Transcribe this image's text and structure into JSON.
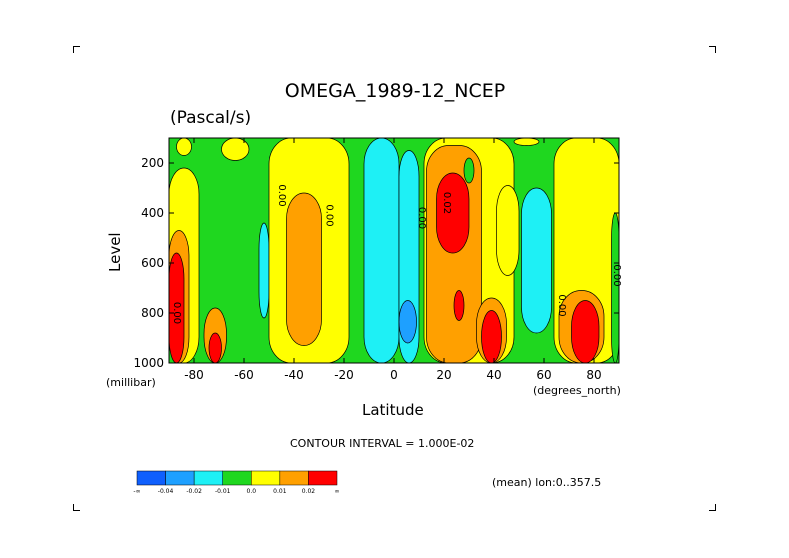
{
  "chart_data": {
    "type": "heatmap",
    "title": "OMEGA_1989-12_NCEP",
    "units": "(Pascal/s)",
    "ylabel": "Level",
    "ylabel_units": "(millibar)",
    "xlabel": "Latitude",
    "xlabel_units": "(degrees_north)",
    "xlim": [
      -90,
      90
    ],
    "ylim": [
      1000,
      100
    ],
    "x_ticks": [
      -80,
      -60,
      -40,
      -20,
      0,
      20,
      40,
      60,
      80
    ],
    "x_tick_labels": [
      "-80",
      "-60",
      "-40",
      "-20",
      "0",
      "20",
      "40",
      "60",
      "80"
    ],
    "y_ticks": [
      200,
      400,
      600,
      800,
      1000
    ],
    "y_tick_labels": [
      "200",
      "400",
      "600",
      "800",
      "1000"
    ],
    "contour_interval_text": "CONTOUR INTERVAL = 1.000E-02",
    "mean_text": "(mean) lon:0..357.5",
    "contour_labels": [
      {
        "text": "0.00",
        "lat": -88,
        "lev": 800
      },
      {
        "text": "0.00",
        "lat": -46,
        "lev": 330
      },
      {
        "text": "0.00",
        "lat": -27,
        "lev": 410
      },
      {
        "text": "0.00",
        "lat": 10,
        "lev": 420
      },
      {
        "text": "0.02",
        "lat": 20,
        "lev": 360
      },
      {
        "text": "0.00",
        "lat": 66,
        "lev": 770
      },
      {
        "text": "0.00",
        "lat": 88,
        "lev": 650
      }
    ],
    "levels": [
      {
        "label": "-0.04",
        "color": "#0f5ffd",
        "min": -0.05,
        "max": -0.04
      },
      {
        "label": "-0.02",
        "color": "#1ea0ff",
        "min": -0.04,
        "max": -0.02
      },
      {
        "label": "-0.01",
        "color": "#1ef0f5",
        "min": -0.02,
        "max": -0.01
      },
      {
        "label": "0.0",
        "color": "#1fd71f",
        "min": -0.01,
        "max": 0.0
      },
      {
        "label": "0.01",
        "color": "#ffff00",
        "min": 0.0,
        "max": 0.01
      },
      {
        "label": "0.02",
        "color": "#ffa000",
        "min": 0.01,
        "max": 0.02
      },
      {
        "label": "",
        "color": "#ff0000",
        "min": 0.02,
        "max": 0.05
      }
    ],
    "colorbar_labels": [
      "-∞",
      "-0.04",
      "-0.02",
      "-0.01",
      "0.0",
      "0.01",
      "0.02",
      "∞"
    ],
    "regions": [
      {
        "color": "#ffff00",
        "lat": [
          -90,
          -78
        ],
        "lev": [
          220,
          1000
        ]
      },
      {
        "color": "#ffa000",
        "lat": [
          -90,
          -82
        ],
        "lev": [
          470,
          1000
        ]
      },
      {
        "color": "#ff0000",
        "lat": [
          -90,
          -84
        ],
        "lev": [
          560,
          1000
        ]
      },
      {
        "color": "#ffa000",
        "lat": [
          -76,
          -67
        ],
        "lev": [
          780,
          1000
        ]
      },
      {
        "color": "#ff0000",
        "lat": [
          -74,
          -69
        ],
        "lev": [
          880,
          1000
        ]
      },
      {
        "color": "#ffff00",
        "lat": [
          -87,
          -81
        ],
        "lev": [
          100,
          170
        ]
      },
      {
        "color": "#ffff00",
        "lat": [
          -69,
          -58
        ],
        "lev": [
          100,
          190
        ]
      },
      {
        "color": "#1ef0f5",
        "lat": [
          -54,
          -50
        ],
        "lev": [
          440,
          820
        ]
      },
      {
        "color": "#ffff00",
        "lat": [
          -50,
          -18
        ],
        "lev": [
          100,
          1000
        ]
      },
      {
        "color": "#ffa000",
        "lat": [
          -43,
          -29
        ],
        "lev": [
          320,
          930
        ]
      },
      {
        "color": "#1ef0f5",
        "lat": [
          -12,
          2
        ],
        "lev": [
          100,
          1000
        ]
      },
      {
        "color": "#1ef0f5",
        "lat": [
          2,
          10
        ],
        "lev": [
          150,
          1000
        ]
      },
      {
        "color": "#1ea0ff",
        "lat": [
          2,
          9
        ],
        "lev": [
          750,
          920
        ]
      },
      {
        "color": "#ffff00",
        "lat": [
          12,
          48
        ],
        "lev": [
          100,
          1000
        ]
      },
      {
        "color": "#ffa000",
        "lat": [
          13,
          35
        ],
        "lev": [
          130,
          1000
        ]
      },
      {
        "color": "#ff0000",
        "lat": [
          17,
          30
        ],
        "lev": [
          240,
          560
        ]
      },
      {
        "color": "#ff0000",
        "lat": [
          24,
          28
        ],
        "lev": [
          710,
          830
        ]
      },
      {
        "color": "#ffa000",
        "lat": [
          33,
          45
        ],
        "lev": [
          740,
          1000
        ]
      },
      {
        "color": "#ff0000",
        "lat": [
          35,
          43
        ],
        "lev": [
          790,
          1000
        ]
      },
      {
        "color": "#ffff00",
        "lat": [
          41,
          50
        ],
        "lev": [
          290,
          650
        ]
      },
      {
        "color": "#1fd71f",
        "lat": [
          28,
          32
        ],
        "lev": [
          180,
          280
        ]
      },
      {
        "color": "#ffff00",
        "lat": [
          48,
          58
        ],
        "lev": [
          100,
          130
        ]
      },
      {
        "color": "#1ef0f5",
        "lat": [
          51,
          63
        ],
        "lev": [
          300,
          880
        ]
      },
      {
        "color": "#ffff00",
        "lat": [
          64,
          90
        ],
        "lev": [
          100,
          1000
        ]
      },
      {
        "color": "#ffa000",
        "lat": [
          66,
          84
        ],
        "lev": [
          710,
          1000
        ]
      },
      {
        "color": "#ff0000",
        "lat": [
          71,
          82
        ],
        "lev": [
          750,
          1000
        ]
      },
      {
        "color": "#1fd71f",
        "lat": [
          87,
          90
        ],
        "lev": [
          400,
          1000
        ]
      }
    ]
  }
}
